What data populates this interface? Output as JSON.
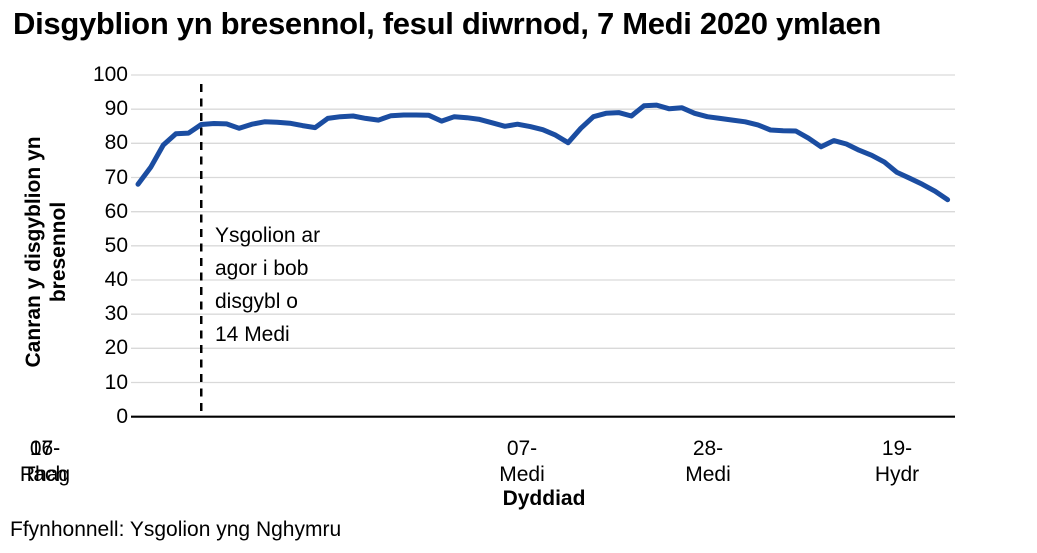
{
  "title": "Disgyblion yn bresennol, fesul diwrnod, 7 Medi 2020 ymlaen",
  "source": "Ffynhonnell: Ysgolion yng Nghymru",
  "annotation": {
    "lines": [
      "Ysgolion ar",
      "agor i bob",
      "disgybl o",
      "14 Medi"
    ]
  },
  "chart_data": {
    "type": "line",
    "title": "Disgyblion yn bresennol, fesul diwrnod, 7 Medi 2020 ymlaen",
    "xlabel": "Dyddiad",
    "ylabel": "Canran y disgyblion yn bresennol",
    "ylabel_lines": [
      "Canran y disgyblion yn",
      "bresennol"
    ],
    "ylim": [
      0,
      100
    ],
    "ytick_step": 10,
    "yticks": [
      "100",
      "90",
      "80",
      "70",
      "60",
      "50",
      "40",
      "30",
      "20",
      "10",
      "0"
    ],
    "xticks": [
      {
        "index": 0,
        "line1": "07-",
        "line2": "Medi",
        "label": "07-Medi"
      },
      {
        "index": 15,
        "line1": "28-",
        "line2": "Medi",
        "label": "28-Medi"
      },
      {
        "index": 30,
        "line1": "19-",
        "line2": "Hydr",
        "label": "19-Hydr"
      },
      {
        "index": 45,
        "line1": "16-",
        "line2": "Tach",
        "label": "16-Tach"
      },
      {
        "index": 60,
        "line1": "07-",
        "line2": "Rhag",
        "label": "07-Rhag"
      }
    ],
    "grid": "horizontal",
    "legend": "none",
    "line_color": "#1b4da1",
    "gridline_color": "#d9d9d9",
    "axis_color": "#000000",
    "dashed_marker": {
      "index": 5,
      "meaning_lines": [
        "Ysgolion ar",
        "agor i bob",
        "disgybl o",
        "14 Medi"
      ]
    },
    "series": [
      {
        "name": "Canran y disgyblion yn bresennol",
        "values": [
          68,
          73,
          79.5,
          82.8,
          83,
          85.5,
          85.8,
          85.7,
          84.4,
          85.6,
          86.3,
          86.2,
          85.9,
          85.2,
          84.6,
          87.3,
          87.8,
          88,
          87.3,
          86.8,
          88.1,
          88.3,
          88.3,
          88.2,
          86.5,
          87.8,
          87.5,
          87,
          86,
          85,
          85.6,
          84.9,
          84,
          82.4,
          80.2,
          84.4,
          87.8,
          88.8,
          89,
          88,
          91,
          91.2,
          90.1,
          90.4,
          88.8,
          87.8,
          87.3,
          86.8,
          86.3,
          85.4,
          83.9,
          83.7,
          83.6,
          81.5,
          79,
          80.8,
          79.8,
          78,
          76.5,
          74.5,
          71.5,
          69.8,
          68,
          66,
          63.5
        ]
      }
    ]
  }
}
